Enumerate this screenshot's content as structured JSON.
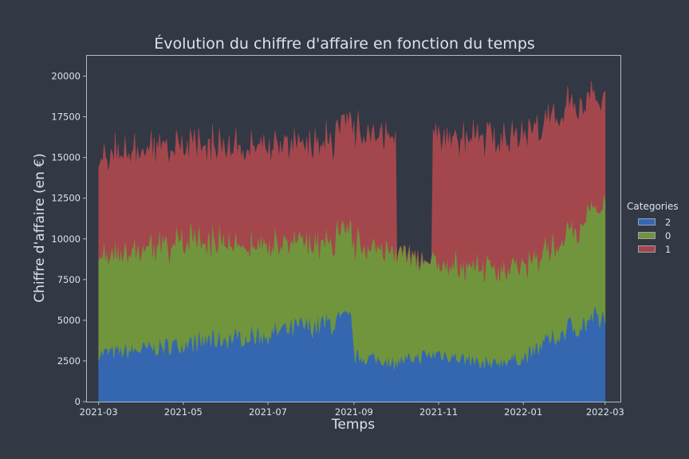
{
  "chart_data": {
    "type": "area",
    "stacked": true,
    "title": "Évolution du chiffre d'affaire en fonction du temps",
    "xlabel": "Temps",
    "ylabel": "Chiffre d'affaire (en €)",
    "xlim": [
      "2021-02-20",
      "2022-03-12"
    ],
    "ylim": [
      0,
      21300
    ],
    "x_ticks": [
      "2021-03",
      "2021-05",
      "2021-07",
      "2021-09",
      "2021-11",
      "2022-01",
      "2022-03"
    ],
    "y_ticks": [
      0,
      2500,
      5000,
      7500,
      10000,
      12500,
      15000,
      17500,
      20000
    ],
    "grid": false,
    "legend": {
      "title": "Categories",
      "position": "right"
    },
    "gap": {
      "series": "1",
      "from": "2021-10-01",
      "to": "2021-10-28"
    },
    "series": [
      {
        "name": "2",
        "color": "#3567b0",
        "points": [
          [
            "2021-03-01",
            3000
          ],
          [
            "2021-04-01",
            3200
          ],
          [
            "2021-05-01",
            3600
          ],
          [
            "2021-06-01",
            3900
          ],
          [
            "2021-07-01",
            4200
          ],
          [
            "2021-08-01",
            4700
          ],
          [
            "2021-08-31",
            5000
          ],
          [
            "2021-09-01",
            2800
          ],
          [
            "2021-10-01",
            2500
          ],
          [
            "2021-11-01",
            3000
          ],
          [
            "2021-12-01",
            2400
          ],
          [
            "2022-01-01",
            2700
          ],
          [
            "2022-02-01",
            4500
          ],
          [
            "2022-03-01",
            5200
          ]
        ]
      },
      {
        "name": "0",
        "color": "#70953c",
        "points": [
          [
            "2021-03-01",
            6100
          ],
          [
            "2021-04-01",
            6300
          ],
          [
            "2021-05-01",
            6500
          ],
          [
            "2021-06-01",
            6000
          ],
          [
            "2021-07-01",
            5500
          ],
          [
            "2021-08-01",
            5000
          ],
          [
            "2021-08-31",
            5200
          ],
          [
            "2021-09-01",
            7200
          ],
          [
            "2021-10-01",
            6700
          ],
          [
            "2021-11-01",
            5500
          ],
          [
            "2021-12-01",
            6000
          ],
          [
            "2022-01-01",
            5600
          ],
          [
            "2022-02-01",
            5800
          ],
          [
            "2022-03-01",
            6800
          ]
        ]
      },
      {
        "name": "1",
        "color": "#a4474d",
        "points": [
          [
            "2021-03-01",
            6000
          ],
          [
            "2021-04-01",
            6000
          ],
          [
            "2021-05-01",
            5600
          ],
          [
            "2021-06-01",
            5700
          ],
          [
            "2021-07-01",
            6000
          ],
          [
            "2021-08-01",
            5800
          ],
          [
            "2021-08-31",
            6500
          ],
          [
            "2021-09-01",
            6800
          ],
          [
            "2021-10-01",
            7000
          ],
          [
            "2021-11-01",
            7700
          ],
          [
            "2021-12-01",
            7900
          ],
          [
            "2022-01-01",
            7800
          ],
          [
            "2022-02-01",
            7800
          ],
          [
            "2022-03-01",
            6400
          ]
        ]
      }
    ]
  }
}
